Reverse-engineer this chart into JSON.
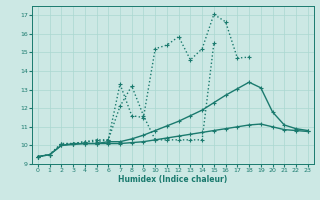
{
  "xlabel": "Humidex (Indice chaleur)",
  "xlim": [
    -0.5,
    23.5
  ],
  "ylim": [
    9,
    17.5
  ],
  "xticks": [
    0,
    1,
    2,
    3,
    4,
    5,
    6,
    7,
    8,
    9,
    10,
    11,
    12,
    13,
    14,
    15,
    16,
    17,
    18,
    19,
    20,
    21,
    22,
    23
  ],
  "yticks": [
    9,
    10,
    11,
    12,
    13,
    14,
    15,
    16,
    17
  ],
  "bg_color": "#cce8e4",
  "line_color": "#1a7a6e",
  "lines": [
    {
      "style": "dotted",
      "x": [
        0,
        1,
        2,
        3,
        4,
        5,
        6,
        7,
        8,
        9,
        10,
        11,
        12,
        13,
        14,
        15,
        16,
        17,
        18
      ],
      "y": [
        9.4,
        9.5,
        10.1,
        10.1,
        10.2,
        10.2,
        10.3,
        13.3,
        11.6,
        11.5,
        15.2,
        15.4,
        15.85,
        14.6,
        15.2,
        17.05,
        16.65,
        14.7,
        14.75
      ]
    },
    {
      "style": "dotted",
      "x": [
        0,
        1,
        2,
        3,
        4,
        5,
        6,
        7,
        8,
        9,
        10,
        11,
        12,
        13,
        14,
        15
      ],
      "y": [
        9.4,
        9.5,
        10.1,
        10.1,
        10.2,
        10.3,
        10.3,
        12.1,
        13.2,
        11.6,
        10.3,
        10.3,
        10.3,
        10.3,
        10.3,
        15.5
      ]
    },
    {
      "style": "solid",
      "x": [
        0,
        1,
        2,
        3,
        4,
        5,
        6,
        7,
        8,
        9,
        10,
        11,
        12,
        13,
        14,
        15,
        16,
        17,
        18,
        19,
        20,
        21,
        22,
        23
      ],
      "y": [
        9.4,
        9.5,
        10.0,
        10.1,
        10.1,
        10.1,
        10.2,
        10.2,
        10.35,
        10.55,
        10.8,
        11.05,
        11.3,
        11.6,
        11.9,
        12.3,
        12.7,
        13.05,
        13.4,
        13.1,
        11.8,
        11.1,
        10.9,
        10.8
      ]
    },
    {
      "style": "solid",
      "x": [
        0,
        1,
        2,
        3,
        4,
        5,
        6,
        7,
        8,
        9,
        10,
        11,
        12,
        13,
        14,
        15,
        16,
        17,
        18,
        19,
        20,
        21,
        22,
        23
      ],
      "y": [
        9.4,
        9.5,
        10.0,
        10.05,
        10.1,
        10.1,
        10.1,
        10.1,
        10.15,
        10.2,
        10.3,
        10.4,
        10.5,
        10.6,
        10.7,
        10.8,
        10.9,
        11.0,
        11.1,
        11.15,
        11.0,
        10.85,
        10.8,
        10.75
      ]
    }
  ]
}
